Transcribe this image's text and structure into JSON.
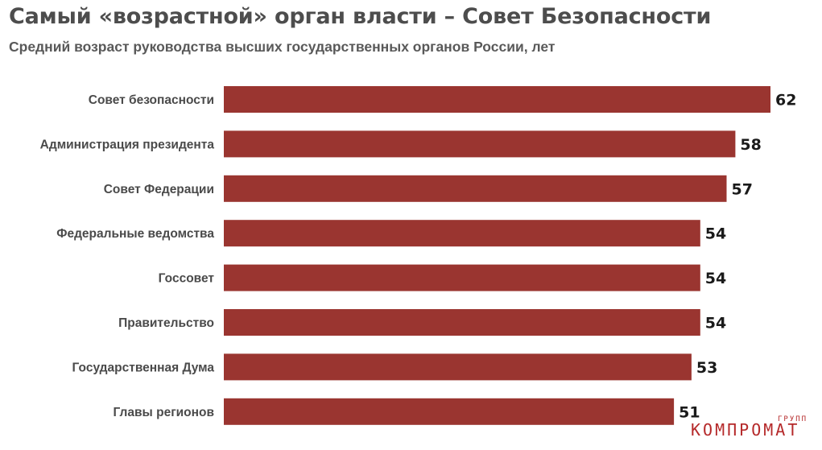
{
  "title": "Самый «возрастной» орган власти – Совет Безопасности",
  "subtitle": "Средний возраст руководства высших государственных органов России, лет",
  "colors": {
    "bar": "#9a3530",
    "value_text": "#1a1a1a",
    "label_text": "#4a4a4a",
    "watermark": "#b5292a"
  },
  "chart_data": {
    "type": "bar",
    "orientation": "horizontal",
    "categories": [
      "Совет безопасности",
      "Администрация президента",
      "Совет Федерации",
      "Федеральные ведомства",
      "Госсовет",
      "Правительство",
      "Государственная Дума",
      "Главы регионов"
    ],
    "values": [
      62,
      58,
      57,
      54,
      54,
      54,
      53,
      51
    ],
    "data_labels": [
      "62",
      "58",
      "57",
      "54",
      "54",
      "54",
      "53",
      "51"
    ],
    "grid": false,
    "legend": "none"
  },
  "watermark": {
    "small": "ГРУПП",
    "main": "КОМПРОМАТ"
  }
}
